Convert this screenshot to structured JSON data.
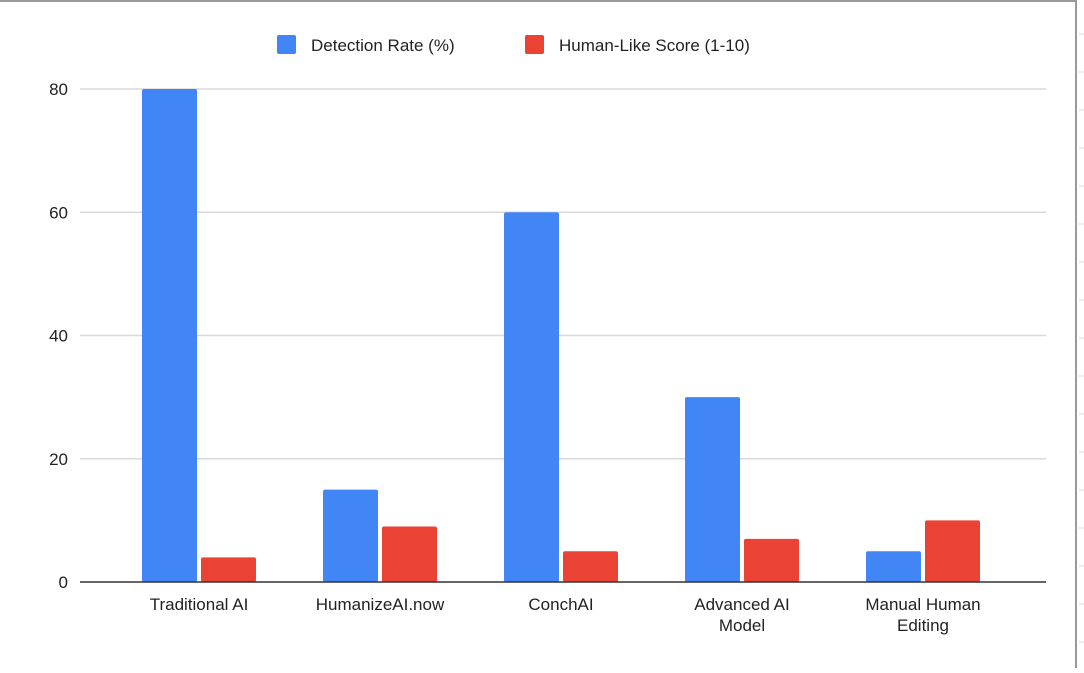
{
  "chart_data": {
    "type": "bar",
    "title": "",
    "xlabel": "",
    "ylabel": "",
    "categories": [
      [
        "Traditional AI"
      ],
      [
        "HumanizeAI.now"
      ],
      [
        "ConchAI"
      ],
      [
        "Advanced AI",
        "Model"
      ],
      [
        "Manual Human",
        "Editing"
      ]
    ],
    "series": [
      {
        "name": "Detection Rate (%)",
        "color": "#4285f4",
        "values": [
          80,
          15,
          60,
          30,
          5
        ]
      },
      {
        "name": "Human-Like Score (1-10)",
        "color": "#ea4335",
        "values": [
          4,
          9,
          5,
          7,
          10
        ]
      }
    ],
    "ylim": [
      0,
      80
    ],
    "yticks": [
      0,
      20,
      40,
      60,
      80
    ],
    "grid": true,
    "legend": "top-center"
  }
}
